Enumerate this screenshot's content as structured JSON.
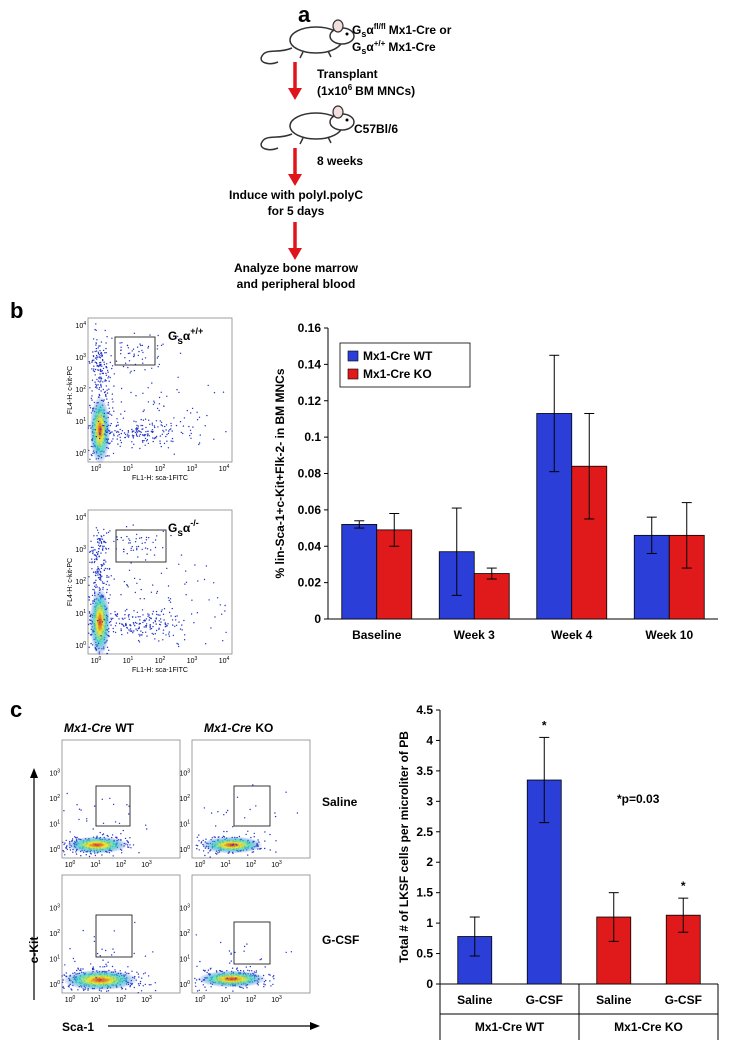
{
  "panel_labels": [
    "a",
    "b",
    "c"
  ],
  "schematic": {
    "donor_1": [
      "G",
      "s",
      "α",
      "fl/fl",
      "Mx1-Cre or"
    ],
    "donor_2": [
      "G",
      "s",
      "α",
      "+/+",
      "Mx1-Cre"
    ],
    "transplant": "Transplant",
    "transplant_dose": [
      "(1x10",
      "6",
      "BM MNCs)"
    ],
    "recipient": "C57Bl/6",
    "wait": "8 weeks",
    "induce": [
      "Induce with polyI.polyC",
      "for 5 days"
    ],
    "analyze": [
      "Analyze bone marrow",
      "and peripheral blood"
    ]
  },
  "flow": {
    "b_labels": [
      [
        "G",
        "s",
        "α",
        "+/+"
      ],
      [
        "G",
        "s",
        "α",
        "-/-"
      ]
    ],
    "x_label": "FL1-H: sca-1FITC",
    "y_label": "FL4-H: c-kit-PC",
    "tick_base": "10",
    "tick_exponents": [
      "0",
      "1",
      "2",
      "3",
      "4"
    ],
    "c_columns": [
      [
        "Mx1-Cre",
        "WT"
      ],
      [
        "Mx1-Cre",
        "KO"
      ]
    ],
    "c_rows": [
      "Saline",
      "G-CSF"
    ],
    "c_y_axis": "c-Kit",
    "c_x_axis": "Sca-1"
  },
  "chart_data": [
    {
      "type": "bar",
      "y_label": "% lin-Sca-1+c-Kit+Flk-2- in BM MNCs",
      "categories": [
        "Baseline",
        "Week 3",
        "Week 4",
        "Week 10"
      ],
      "series": [
        {
          "name": "Mx1-Cre WT",
          "color": "#2b3fd8",
          "values": [
            0.052,
            0.037,
            0.113,
            0.046
          ],
          "errors": [
            0.002,
            0.024,
            0.032,
            0.01
          ]
        },
        {
          "name": "Mx1-Cre KO",
          "color": "#e01a1a",
          "values": [
            0.049,
            0.025,
            0.084,
            0.046
          ],
          "errors": [
            0.009,
            0.003,
            0.029,
            0.018
          ]
        }
      ],
      "ylim": [
        0,
        0.16
      ],
      "yticks": [
        0,
        0.02,
        0.04,
        0.06,
        0.08,
        0.1,
        0.12,
        0.14,
        0.16
      ],
      "legend": "top-left"
    },
    {
      "type": "bar",
      "y_label": "Total # of LKSF cells per microliter of PB",
      "categories": [
        "Saline",
        "G-CSF",
        "Saline",
        "G-CSF"
      ],
      "groups": [
        "Mx1-Cre WT",
        "Mx1-Cre KO"
      ],
      "values": [
        0.78,
        3.35,
        1.1,
        1.13
      ],
      "errors": [
        0.32,
        0.7,
        0.4,
        0.28
      ],
      "colors": [
        "#2b3fd8",
        "#2b3fd8",
        "#e01a1a",
        "#e01a1a"
      ],
      "star_labels": [
        null,
        "*",
        null,
        "*"
      ],
      "note": "*p=0.03",
      "ylim": [
        0,
        4.5
      ],
      "yticks": [
        0,
        0.5,
        1,
        1.5,
        2,
        2.5,
        3,
        3.5,
        4,
        4.5
      ]
    }
  ]
}
